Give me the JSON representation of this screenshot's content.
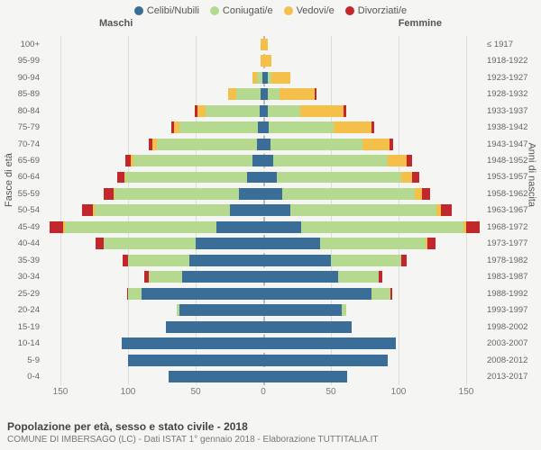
{
  "legend": [
    {
      "key": "celibi",
      "label": "Celibi/Nubili",
      "color": "#3b6d99"
    },
    {
      "key": "coniugati",
      "label": "Coniugati/e",
      "color": "#b4d98f"
    },
    {
      "key": "vedovi",
      "label": "Vedovi/e",
      "color": "#f5c04a"
    },
    {
      "key": "divorziati",
      "label": "Divorziati/e",
      "color": "#c1272d"
    }
  ],
  "side_headers": {
    "male": "Maschi",
    "female": "Femmine"
  },
  "ytitle_left": "Fasce di età",
  "ytitle_right": "Anni di nascita",
  "xlim": 160,
  "xticks_male": [
    150,
    100,
    50,
    0
  ],
  "xticks_female": [
    50,
    100,
    150
  ],
  "background_color": "#f5f5f3",
  "grid_color": "#dddddd",
  "title": "Popolazione per età, sesso e stato civile - 2018",
  "subtitle": "COMUNE DI IMBERSAGO (LC) - Dati ISTAT 1° gennaio 2018 - Elaborazione TUTTITALIA.IT",
  "label_fontsize": 9.5,
  "axis_fontsize": 10,
  "legend_fontsize": 11,
  "title_fontsize": 12,
  "rows": [
    {
      "age": "100+",
      "year": "≤ 1917",
      "m": [
        0,
        0,
        2,
        0
      ],
      "f": [
        0,
        0,
        3,
        0
      ]
    },
    {
      "age": "95-99",
      "year": "1918-1922",
      "m": [
        0,
        0,
        2,
        0
      ],
      "f": [
        0,
        0,
        6,
        0
      ]
    },
    {
      "age": "90-94",
      "year": "1923-1927",
      "m": [
        1,
        4,
        3,
        0
      ],
      "f": [
        3,
        3,
        14,
        0
      ]
    },
    {
      "age": "85-89",
      "year": "1928-1932",
      "m": [
        2,
        18,
        6,
        0
      ],
      "f": [
        3,
        9,
        26,
        1
      ]
    },
    {
      "age": "80-84",
      "year": "1933-1937",
      "m": [
        3,
        40,
        6,
        2
      ],
      "f": [
        3,
        24,
        32,
        2
      ]
    },
    {
      "age": "75-79",
      "year": "1938-1942",
      "m": [
        4,
        58,
        4,
        2
      ],
      "f": [
        4,
        48,
        28,
        2
      ]
    },
    {
      "age": "70-74",
      "year": "1943-1947",
      "m": [
        5,
        74,
        3,
        3
      ],
      "f": [
        5,
        68,
        20,
        3
      ]
    },
    {
      "age": "65-69",
      "year": "1948-1952",
      "m": [
        8,
        88,
        2,
        4
      ],
      "f": [
        7,
        85,
        14,
        4
      ]
    },
    {
      "age": "60-64",
      "year": "1953-1957",
      "m": [
        12,
        90,
        1,
        5
      ],
      "f": [
        10,
        92,
        8,
        5
      ]
    },
    {
      "age": "55-59",
      "year": "1958-1962",
      "m": [
        18,
        92,
        1,
        7
      ],
      "f": [
        14,
        98,
        5,
        6
      ]
    },
    {
      "age": "50-54",
      "year": "1963-1967",
      "m": [
        25,
        100,
        1,
        8
      ],
      "f": [
        20,
        108,
        3,
        8
      ]
    },
    {
      "age": "45-49",
      "year": "1968-1972",
      "m": [
        35,
        112,
        1,
        10
      ],
      "f": [
        28,
        120,
        2,
        10
      ]
    },
    {
      "age": "40-44",
      "year": "1973-1977",
      "m": [
        50,
        68,
        0,
        6
      ],
      "f": [
        42,
        78,
        1,
        6
      ]
    },
    {
      "age": "35-39",
      "year": "1978-1982",
      "m": [
        55,
        45,
        0,
        4
      ],
      "f": [
        50,
        52,
        0,
        4
      ]
    },
    {
      "age": "30-34",
      "year": "1983-1987",
      "m": [
        60,
        25,
        0,
        3
      ],
      "f": [
        55,
        30,
        0,
        3
      ]
    },
    {
      "age": "25-29",
      "year": "1988-1992",
      "m": [
        90,
        10,
        0,
        1
      ],
      "f": [
        80,
        14,
        0,
        1
      ]
    },
    {
      "age": "20-24",
      "year": "1993-1997",
      "m": [
        62,
        2,
        0,
        0
      ],
      "f": [
        58,
        3,
        0,
        0
      ]
    },
    {
      "age": "15-19",
      "year": "1998-2002",
      "m": [
        72,
        0,
        0,
        0
      ],
      "f": [
        65,
        0,
        0,
        0
      ]
    },
    {
      "age": "10-14",
      "year": "2003-2007",
      "m": [
        105,
        0,
        0,
        0
      ],
      "f": [
        98,
        0,
        0,
        0
      ]
    },
    {
      "age": "5-9",
      "year": "2008-2012",
      "m": [
        100,
        0,
        0,
        0
      ],
      "f": [
        92,
        0,
        0,
        0
      ]
    },
    {
      "age": "0-4",
      "year": "2013-2017",
      "m": [
        70,
        0,
        0,
        0
      ],
      "f": [
        62,
        0,
        0,
        0
      ]
    }
  ]
}
